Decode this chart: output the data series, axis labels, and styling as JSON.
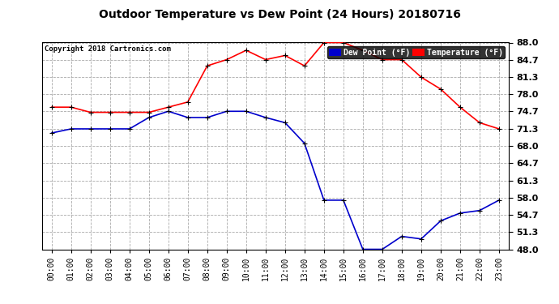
{
  "title": "Outdoor Temperature vs Dew Point (24 Hours) 20180716",
  "copyright": "Copyright 2018 Cartronics.com",
  "legend_dew": "Dew Point (°F)",
  "legend_temp": "Temperature (°F)",
  "hours": [
    0,
    1,
    2,
    3,
    4,
    5,
    6,
    7,
    8,
    9,
    10,
    11,
    12,
    13,
    14,
    15,
    16,
    17,
    18,
    19,
    20,
    21,
    22,
    23
  ],
  "temperature": [
    75.5,
    75.5,
    74.5,
    74.5,
    74.5,
    74.5,
    75.5,
    76.5,
    83.5,
    84.7,
    86.5,
    84.7,
    85.5,
    83.5,
    88.0,
    88.0,
    86.5,
    84.7,
    84.7,
    81.3,
    79.0,
    75.5,
    72.5,
    71.3
  ],
  "dew_point": [
    70.5,
    71.3,
    71.3,
    71.3,
    71.3,
    73.5,
    74.7,
    73.5,
    73.5,
    74.7,
    74.7,
    73.5,
    72.5,
    68.5,
    57.5,
    57.5,
    48.0,
    48.0,
    50.5,
    50.0,
    53.5,
    55.0,
    55.5,
    57.5
  ],
  "ylim_min": 48.0,
  "ylim_max": 88.0,
  "ytick_vals": [
    48.0,
    51.3,
    54.7,
    58.0,
    61.3,
    64.7,
    68.0,
    71.3,
    74.7,
    78.0,
    81.3,
    84.7,
    88.0
  ],
  "bg_color": "#ffffff",
  "grid_color": "#aaaaaa",
  "temp_color": "#ff0000",
  "dew_color": "#0000cc",
  "line_width": 1.2,
  "marker_size": 5,
  "title_fontsize": 10,
  "tick_fontsize": 7,
  "ytick_fontsize": 8
}
